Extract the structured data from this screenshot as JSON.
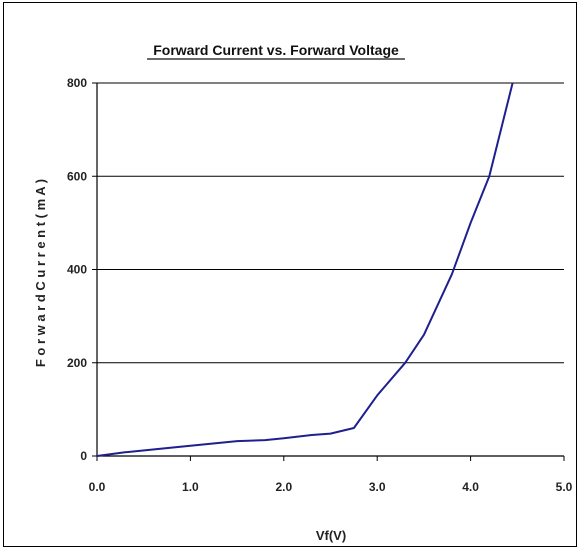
{
  "chart_data": {
    "type": "line",
    "title": "Forward Current vs. Forward Voltage",
    "xlabel": "Vf(V)",
    "ylabel": "F o r w a r d   C u r r e n t ( m A )",
    "xlim": [
      0,
      5
    ],
    "ylim": [
      0,
      800
    ],
    "x_ticks": [
      "0.0",
      "1.0",
      "2.0",
      "3.0",
      "4.0",
      "5.0"
    ],
    "y_ticks": [
      "0",
      "200",
      "400",
      "600",
      "800"
    ],
    "y_tick_values": [
      0,
      200,
      400,
      600,
      800
    ],
    "x_tick_values": [
      0,
      1,
      2,
      3,
      4,
      5
    ],
    "grid": "horizontal",
    "series": [
      {
        "color": "#1f1f8f",
        "x": [
          0.0,
          0.3,
          0.6,
          1.0,
          1.5,
          1.8,
          2.0,
          2.3,
          2.5,
          2.75,
          3.0,
          3.3,
          3.5,
          3.8,
          4.0,
          4.2,
          4.45
        ],
        "y": [
          0,
          8,
          14,
          22,
          32,
          34,
          38,
          45,
          48,
          60,
          130,
          200,
          260,
          390,
          500,
          600,
          800
        ]
      }
    ]
  }
}
